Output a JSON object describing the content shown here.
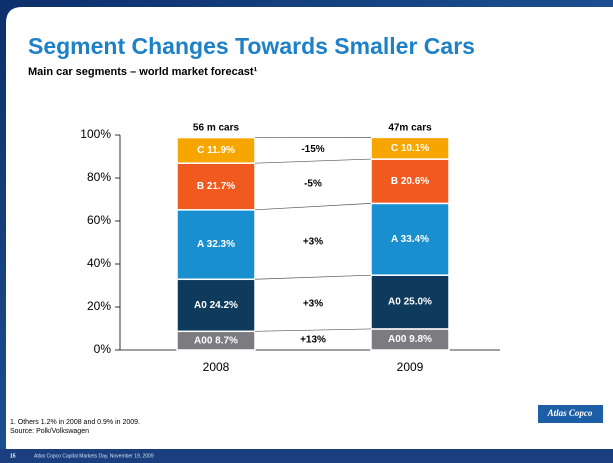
{
  "chart_data": {
    "type": "stacked_bar",
    "title": "Segment Changes Towards Smaller Cars",
    "subtitle": "Main car segments – world market forecast¹",
    "categories": [
      "2008",
      "2009"
    ],
    "totals_labels": [
      "56 m cars",
      "47m cars"
    ],
    "series": [
      {
        "name": "A00",
        "color": "#7b7b80",
        "values": [
          8.7,
          9.8
        ],
        "value_labels": [
          "A00 8.7%",
          "A00 9.8%"
        ],
        "change_label": "+13%"
      },
      {
        "name": "A0",
        "color": "#0e3a5c",
        "values": [
          24.2,
          25.0
        ],
        "value_labels": [
          "A0 24.2%",
          "A0 25.0%"
        ],
        "change_label": "+3%"
      },
      {
        "name": "A",
        "color": "#1a8fd0",
        "values": [
          32.3,
          33.4
        ],
        "value_labels": [
          "A 32.3%",
          "A 33.4%"
        ],
        "change_label": "+3%"
      },
      {
        "name": "B",
        "color": "#f05a1e",
        "values": [
          21.7,
          20.6
        ],
        "value_labels": [
          "B 21.7%",
          "B 20.6%"
        ],
        "change_label": "-5%"
      },
      {
        "name": "C",
        "color": "#f7a600",
        "values": [
          11.9,
          10.1
        ],
        "value_labels": [
          "C 11.9%",
          "C 10.1%"
        ],
        "change_label": "-15%"
      }
    ],
    "ylim": [
      0,
      100
    ],
    "yticks": [
      {
        "value": 0,
        "label": "0%"
      },
      {
        "value": 20,
        "label": "20%"
      },
      {
        "value": 40,
        "label": "40%"
      },
      {
        "value": 60,
        "label": "60%"
      },
      {
        "value": 80,
        "label": "80%"
      },
      {
        "value": 100,
        "label": "100%"
      }
    ],
    "footnote": "1. Others 1.2% in 2008 and 0.9% in 2009.",
    "source": "Source: Polk/Volkswagen",
    "footer_page": "15",
    "footer_text": "Atlas Copco Capital Markets Day, November 19, 2009",
    "logo": "Atlas Copco"
  }
}
